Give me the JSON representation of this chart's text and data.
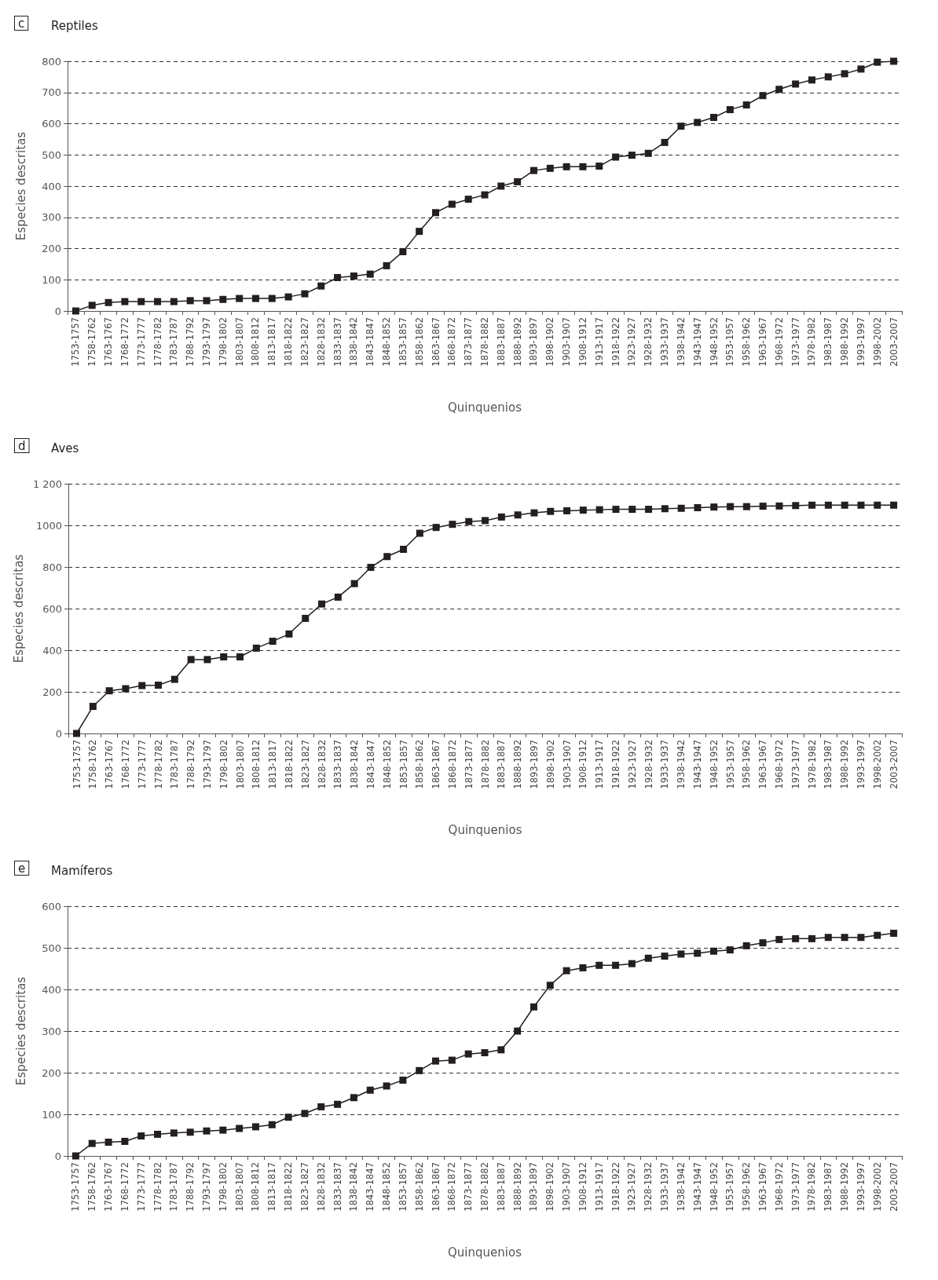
{
  "chart_data": [
    {
      "type": "line",
      "title": "Reptiles",
      "annotations": [
        "c"
      ],
      "xlabel": "Quinquenios",
      "ylabel": "Especies descritas",
      "categories": [
        "1753-1757",
        "1758-1762",
        "1763-1767",
        "1768-1772",
        "1773-1777",
        "1778-1782",
        "1783-1787",
        "1788-1792",
        "1793-1797",
        "1798-1802",
        "1803-1807",
        "1808-1812",
        "1813-1817",
        "1818-1822",
        "1823-1827",
        "1828-1832",
        "1833-1837",
        "1838-1842",
        "1843-1847",
        "1848-1852",
        "1853-1857",
        "1858-1862",
        "1863-1867",
        "1868-1872",
        "1873-1877",
        "1878-1882",
        "1883-1887",
        "1888-1892",
        "1893-1897",
        "1898-1902",
        "1903-1907",
        "1908-1912",
        "1913-1917",
        "1918-1922",
        "1923-1927",
        "1928-1932",
        "1933-1937",
        "1938-1942",
        "1943-1947",
        "1948-1952",
        "1953-1957",
        "1958-1962",
        "1963-1967",
        "1968-1972",
        "1973-1977",
        "1978-1982",
        "1983-1987",
        "1988-1992",
        "1993-1997",
        "1998-2002",
        "2003-2007"
      ],
      "series": [
        {
          "color": "#231f20",
          "values": [
            0,
            18,
            27,
            30,
            30,
            30,
            30,
            33,
            33,
            37,
            40,
            40,
            40,
            45,
            55,
            80,
            107,
            112,
            118,
            145,
            190,
            255,
            315,
            342,
            358,
            372,
            400,
            414,
            450,
            457,
            462,
            462,
            464,
            493,
            499,
            505,
            540,
            592,
            604,
            620,
            645,
            660,
            690,
            710,
            727,
            740,
            750,
            760,
            775,
            797,
            800
          ]
        }
      ],
      "ylim": [
        0,
        800
      ],
      "yticks": [
        0,
        100,
        200,
        300,
        400,
        500,
        600,
        700,
        800
      ],
      "grid": "y",
      "marker": "square",
      "line_style": "solid"
    },
    {
      "type": "line",
      "title": "Aves",
      "annotations": [
        "d"
      ],
      "xlabel": "Quinquenios",
      "ylabel": "Especies descritas",
      "categories": [
        "1753-1757",
        "1758-1762",
        "1763-1767",
        "1768-1772",
        "1773-1777",
        "1778-1782",
        "1783-1787",
        "1788-1792",
        "1793-1797",
        "1798-1802",
        "1803-1807",
        "1808-1812",
        "1813-1817",
        "1818-1822",
        "1823-1827",
        "1828-1832",
        "1833-1837",
        "1838-1842",
        "1843-1847",
        "1848-1852",
        "1853-1857",
        "1858-1862",
        "1863-1867",
        "1868-1872",
        "1873-1877",
        "1878-1882",
        "1883-1887",
        "1888-1892",
        "1893-1897",
        "1898-1902",
        "1903-1907",
        "1908-1912",
        "1913-1917",
        "1918-1922",
        "1923-1927",
        "1928-1932",
        "1933-1937",
        "1938-1942",
        "1943-1947",
        "1948-1952",
        "1953-1957",
        "1958-1962",
        "1963-1967",
        "1968-1972",
        "1973-1977",
        "1978-1982",
        "1983-1987",
        "1988-1992",
        "1993-1997",
        "1998-2002",
        "2003-2007"
      ],
      "series": [
        {
          "color": "#231f20",
          "values": [
            0,
            130,
            205,
            215,
            230,
            232,
            260,
            355,
            355,
            368,
            368,
            410,
            443,
            478,
            553,
            622,
            655,
            720,
            798,
            850,
            885,
            962,
            990,
            1005,
            1018,
            1023,
            1040,
            1050,
            1060,
            1067,
            1070,
            1073,
            1075,
            1077,
            1077,
            1077,
            1080,
            1082,
            1085,
            1088,
            1090,
            1090,
            1092,
            1093,
            1095,
            1097,
            1097,
            1097,
            1097,
            1097,
            1097
          ]
        }
      ],
      "ylim": [
        0,
        1200
      ],
      "yticks": [
        0,
        200,
        400,
        600,
        800,
        1000,
        {
          "value": 1200,
          "label": "1 200"
        }
      ],
      "grid": "y",
      "marker": "square",
      "line_style": "solid"
    },
    {
      "type": "line",
      "title": "Mamíferos",
      "annotations": [
        "e"
      ],
      "xlabel": "Quinquenios",
      "ylabel": "Especies descritas",
      "categories": [
        "1753-1757",
        "1758-1762",
        "1763-1767",
        "1768-1772",
        "1773-1777",
        "1778-1782",
        "1783-1787",
        "1788-1792",
        "1793-1797",
        "1798-1802",
        "1803-1807",
        "1808-1812",
        "1813-1817",
        "1818-1822",
        "1823-1827",
        "1828-1832",
        "1833-1837",
        "1838-1842",
        "1843-1847",
        "1848-1852",
        "1853-1857",
        "1858-1862",
        "1863-1867",
        "1868-1872",
        "1873-1877",
        "1878-1882",
        "1883-1887",
        "1888-1892",
        "1893-1897",
        "1898-1902",
        "1903-1907",
        "1908-1912",
        "1913-1917",
        "1918-1922",
        "1923-1927",
        "1928-1932",
        "1933-1937",
        "1938-1942",
        "1943-1947",
        "1948-1952",
        "1953-1957",
        "1958-1962",
        "1963-1967",
        "1968-1972",
        "1973-1977",
        "1978-1982",
        "1983-1987",
        "1988-1992",
        "1993-1997",
        "1998-2002",
        "2003-2007"
      ],
      "series": [
        {
          "color": "#231f20",
          "values": [
            0,
            30,
            33,
            35,
            48,
            52,
            55,
            57,
            60,
            62,
            66,
            70,
            75,
            93,
            102,
            118,
            124,
            140,
            158,
            168,
            182,
            205,
            228,
            230,
            245,
            248,
            255,
            300,
            358,
            410,
            445,
            452,
            458,
            458,
            462,
            475,
            480,
            485,
            487,
            492,
            495,
            505,
            512,
            520,
            522,
            522,
            525,
            525,
            525,
            530,
            535
          ]
        }
      ],
      "ylim": [
        0,
        600
      ],
      "yticks": [
        0,
        100,
        200,
        300,
        400,
        500,
        600
      ],
      "grid": "y",
      "marker": "square",
      "line_style": "solid"
    }
  ]
}
